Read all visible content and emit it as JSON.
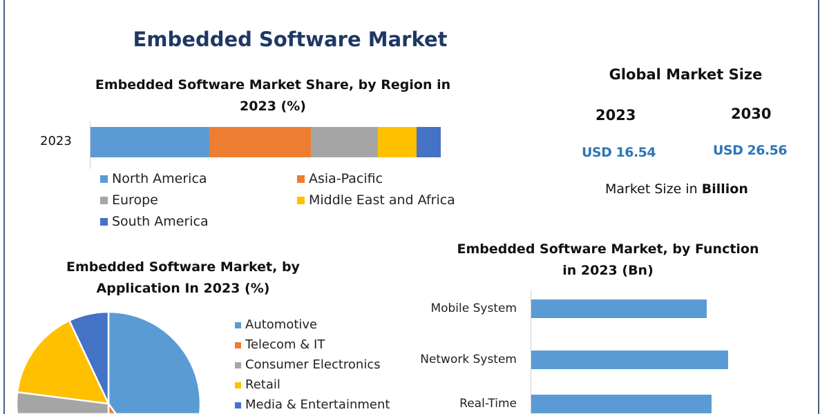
{
  "title": "Embedded Software Market",
  "global_market": {
    "heading": "Global Market Size",
    "years": [
      "2023",
      "2030"
    ],
    "values": [
      "USD 16.54",
      "USD 26.56"
    ],
    "note_prefix": "Market Size in ",
    "note_bold": "Billion",
    "value_color": "#2e75b6"
  },
  "chart_data": [
    {
      "type": "bar",
      "orientation": "horizontal-stacked",
      "title": "Embedded Software Market Share, by Region in 2023 (%)",
      "categories": [
        "2023"
      ],
      "series": [
        {
          "name": "North America",
          "values": [
            34
          ],
          "color": "#5b9bd5"
        },
        {
          "name": "Asia-Pacific",
          "values": [
            29
          ],
          "color": "#ed7d31"
        },
        {
          "name": "Europe",
          "values": [
            19
          ],
          "color": "#a5a5a5"
        },
        {
          "name": "Middle East and Africa",
          "values": [
            11
          ],
          "color": "#ffc000"
        },
        {
          "name": "South America",
          "values": [
            7
          ],
          "color": "#4472c4"
        }
      ],
      "legend": "bottom"
    },
    {
      "type": "pie",
      "title": "Embedded Software Market, by Application In 2023 (%)",
      "categories": [
        "Automotive",
        "Telecom & IT",
        "Consumer Electronics",
        "Retail",
        "Media & Entertainment"
      ],
      "values": [
        40,
        10,
        27,
        16,
        7
      ],
      "colors": [
        "#5b9bd5",
        "#ed7d31",
        "#a5a5a5",
        "#ffc000",
        "#4472c4"
      ],
      "legend": "right"
    },
    {
      "type": "bar",
      "orientation": "horizontal",
      "title": "Embedded Software Market, by Function in 2023 (Bn)",
      "categories": [
        "Mobile System",
        "Network System",
        "Real-Time"
      ],
      "values": [
        2.54,
        2.85,
        2.61
      ],
      "color": "#5b9bd5"
    }
  ]
}
